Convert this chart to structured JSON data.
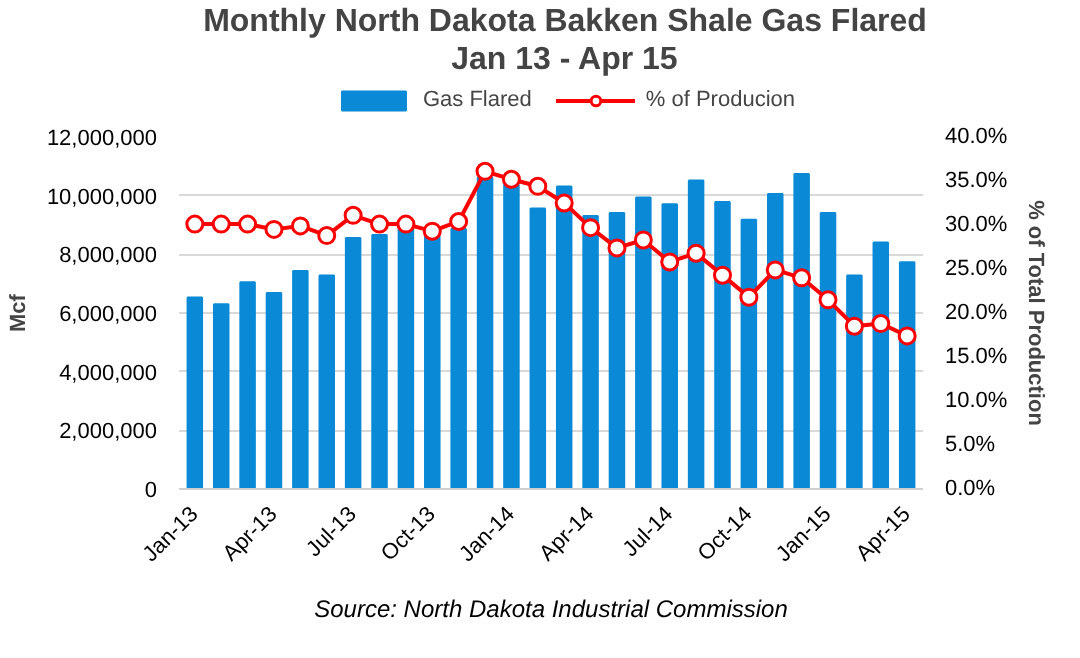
{
  "chart_data": {
    "type": "bar",
    "title": "Monthly North Dakota Bakken Shale Gas Flared",
    "subtitle": "Jan 13 - Apr 15",
    "categories": [
      "Jan-13",
      null,
      null,
      "Apr-13",
      null,
      null,
      "Jul-13",
      null,
      null,
      "Oct-13",
      null,
      null,
      "Jan-14",
      null,
      null,
      "Apr-14",
      null,
      null,
      "Jul-14",
      null,
      null,
      "Oct-14",
      null,
      null,
      "Jan-15",
      null,
      null,
      "Apr-15"
    ],
    "series": [
      {
        "name": "Gas Flared",
        "color": "#0a8ad6",
        "values": [
          6530000,
          6300000,
          7050000,
          6680000,
          7430000,
          7280000,
          8560000,
          8660000,
          8860000,
          8610000,
          8860000,
          10610000,
          10370000,
          9560000,
          10310000,
          9310000,
          9410000,
          9940000,
          9710000,
          10520000,
          9780000,
          9180000,
          10060000,
          10740000,
          9410000,
          7280000,
          8400000,
          7730000
        ]
      },
      {
        "name": "% of Producion",
        "type": "line",
        "axis": "y2",
        "color": "#ff0000",
        "marker": "circle",
        "values": [
          30.1,
          30.1,
          30.1,
          29.5,
          29.9,
          28.8,
          31.1,
          30.1,
          30.1,
          29.3,
          30.4,
          36.1,
          35.2,
          34.4,
          32.5,
          29.7,
          27.4,
          28.3,
          25.8,
          26.8,
          24.3,
          21.8,
          24.9,
          24.0,
          21.5,
          18.5,
          18.8,
          17.4
        ]
      }
    ],
    "ylabel": "Mcf",
    "y2label": "% of Total Production",
    "ylim": [
      0,
      12000000
    ],
    "yticks": [
      0,
      {
        "value": 2000000,
        "label": "2,000,000"
      },
      {
        "value": 4000000,
        "label": "4,000,000"
      },
      {
        "value": 6000000,
        "label": "6,000,000"
      },
      {
        "value": 8000000,
        "label": "8,000,000"
      },
      {
        "value": 10000000,
        "label": "10,000,000"
      },
      {
        "value": 12000000,
        "label": "12,000,000"
      }
    ],
    "y2lim": [
      0,
      40
    ],
    "y2ticks": [
      {
        "value": 0,
        "label": "0.0%"
      },
      {
        "value": 5,
        "label": "5.0%"
      },
      {
        "value": 10,
        "label": "10.0%"
      },
      {
        "value": 15,
        "label": "15.0%"
      },
      {
        "value": 20,
        "label": "20.0%"
      },
      {
        "value": 25,
        "label": "25.0%"
      },
      {
        "value": 30,
        "label": "30.0%"
      },
      {
        "value": 35,
        "label": "35.0%"
      },
      {
        "value": 40,
        "label": "40.0%"
      }
    ],
    "grid": "y",
    "legend": "top",
    "annotations": [
      "Source: North Dakota Industrial Commission"
    ]
  }
}
